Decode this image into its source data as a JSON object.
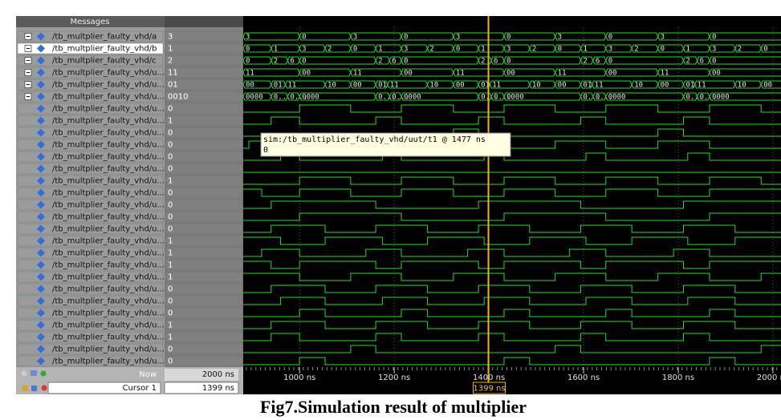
{
  "header": {
    "messages": "Messages"
  },
  "signals": [
    {
      "name": "/tb_multplier_faulty_vhd/a",
      "value": "3",
      "wave": [
        {
          "t": 881,
          "label": "3"
        },
        {
          "t": 1000,
          "label": "0"
        },
        {
          "t": 1108,
          "label": "3"
        },
        {
          "t": 1215,
          "label": "0"
        },
        {
          "t": 1325,
          "label": "3"
        },
        {
          "t": 1432,
          "label": "0"
        },
        {
          "t": 1540,
          "label": "3"
        },
        {
          "t": 1647,
          "label": "0"
        },
        {
          "t": 1757,
          "label": "3"
        },
        {
          "t": 1866,
          "label": "0"
        }
      ]
    },
    {
      "name": "/tb_multplier_faulty_vhd/b",
      "value": "1",
      "wave": [
        {
          "t": 881,
          "label": "0"
        },
        {
          "t": 940,
          "label": "1"
        },
        {
          "t": 1000,
          "label": "3"
        },
        {
          "t": 1054,
          "label": "2"
        },
        {
          "t": 1108,
          "label": "0"
        },
        {
          "t": 1161,
          "label": "1"
        },
        {
          "t": 1215,
          "label": "3"
        },
        {
          "t": 1270,
          "label": "2"
        },
        {
          "t": 1325,
          "label": "0"
        },
        {
          "t": 1378,
          "label": "1"
        },
        {
          "t": 1432,
          "label": "3"
        },
        {
          "t": 1486,
          "label": "2"
        },
        {
          "t": 1540,
          "label": "0"
        },
        {
          "t": 1594,
          "label": "1"
        },
        {
          "t": 1647,
          "label": "3"
        },
        {
          "t": 1702,
          "label": "2"
        },
        {
          "t": 1757,
          "label": "0"
        },
        {
          "t": 1811,
          "label": "1"
        },
        {
          "t": 1866,
          "label": "3"
        },
        {
          "t": 1920,
          "label": "2"
        },
        {
          "t": 1975,
          "label": "0"
        }
      ]
    },
    {
      "name": "/tb_multplier_faulty_vhd/c",
      "value": "2",
      "wave": [
        {
          "t": 881,
          "label": "0"
        },
        {
          "t": 940,
          "label": "2"
        },
        {
          "t": 975,
          "label": "6"
        },
        {
          "t": 1000,
          "label": "0"
        },
        {
          "t": 1161,
          "label": "2"
        },
        {
          "t": 1190,
          "label": "6"
        },
        {
          "t": 1215,
          "label": "0"
        },
        {
          "t": 1378,
          "label": "2"
        },
        {
          "t": 1405,
          "label": "6"
        },
        {
          "t": 1432,
          "label": "0"
        },
        {
          "t": 1594,
          "label": "2"
        },
        {
          "t": 1620,
          "label": "6"
        },
        {
          "t": 1647,
          "label": "0"
        },
        {
          "t": 1811,
          "label": "2"
        },
        {
          "t": 1840,
          "label": "6"
        },
        {
          "t": 1866,
          "label": "0"
        }
      ]
    },
    {
      "name": "/tb_multplier_faulty_vhd/u...",
      "value": "11",
      "wave": [
        {
          "t": 881,
          "label": "11"
        },
        {
          "t": 1000,
          "label": "00"
        },
        {
          "t": 1108,
          "label": "11"
        },
        {
          "t": 1215,
          "label": "00"
        },
        {
          "t": 1325,
          "label": "11"
        },
        {
          "t": 1432,
          "label": "00"
        },
        {
          "t": 1540,
          "label": "11"
        },
        {
          "t": 1647,
          "label": "00"
        },
        {
          "t": 1757,
          "label": "11"
        },
        {
          "t": 1866,
          "label": "00"
        }
      ]
    },
    {
      "name": "/tb_multplier_faulty_vhd/u...",
      "value": "01",
      "wave": [
        {
          "t": 881,
          "label": "00"
        },
        {
          "t": 940,
          "label": "01"
        },
        {
          "t": 970,
          "label": "11"
        },
        {
          "t": 1054,
          "label": "10"
        },
        {
          "t": 1108,
          "label": "00"
        },
        {
          "t": 1161,
          "label": "01"
        },
        {
          "t": 1186,
          "label": "11"
        },
        {
          "t": 1270,
          "label": "10"
        },
        {
          "t": 1325,
          "label": "00"
        },
        {
          "t": 1378,
          "label": "01"
        },
        {
          "t": 1402,
          "label": "11"
        },
        {
          "t": 1486,
          "label": "10"
        },
        {
          "t": 1540,
          "label": "00"
        },
        {
          "t": 1594,
          "label": "01"
        },
        {
          "t": 1618,
          "label": "11"
        },
        {
          "t": 1702,
          "label": "10"
        },
        {
          "t": 1757,
          "label": "00"
        },
        {
          "t": 1811,
          "label": "01"
        },
        {
          "t": 1835,
          "label": "11"
        },
        {
          "t": 1920,
          "label": "10"
        },
        {
          "t": 1975,
          "label": "00"
        }
      ]
    },
    {
      "name": "/tb_multplier_faulty_vhd/u...",
      "value": "0010",
      "wave": [
        {
          "t": 881,
          "label": "0000"
        },
        {
          "t": 940,
          "label": "0..."
        },
        {
          "t": 975,
          "label": "0..."
        },
        {
          "t": 1000,
          "label": "0000"
        },
        {
          "t": 1161,
          "label": "0..."
        },
        {
          "t": 1190,
          "label": "0..."
        },
        {
          "t": 1215,
          "label": "0000"
        },
        {
          "t": 1378,
          "label": "0..."
        },
        {
          "t": 1405,
          "label": "0..."
        },
        {
          "t": 1432,
          "label": "0000"
        },
        {
          "t": 1594,
          "label": "0..."
        },
        {
          "t": 1620,
          "label": "0..."
        },
        {
          "t": 1647,
          "label": "0000"
        },
        {
          "t": 1811,
          "label": "0..."
        },
        {
          "t": 1840,
          "label": "0..."
        },
        {
          "t": 1866,
          "label": "0000"
        }
      ]
    },
    {
      "name": "/tb_multplier_faulty_vhd/u...",
      "value": "0",
      "init": 0,
      "toggles": [
        1000,
        1108,
        1215,
        1325,
        1432,
        1540,
        1647,
        1757,
        1866,
        1975
      ]
    },
    {
      "name": "/tb_multplier_faulty_vhd/u...",
      "value": "1",
      "init": 0,
      "toggles": [
        940,
        1000,
        1161,
        1215,
        1378,
        1432,
        1594,
        1647,
        1811,
        1866
      ]
    },
    {
      "name": "/tb_multplier_faulty_vhd/u...",
      "value": "0",
      "init": 0,
      "toggles": [
        1325,
        1378,
        1757,
        1811
      ]
    },
    {
      "name": "/tb_multplier_faulty_vhd/u...",
      "value": "0",
      "init": 0,
      "toggles": [
        893,
        1000,
        1108,
        1215,
        1325,
        1432,
        1540,
        1647,
        1757,
        1866
      ]
    },
    {
      "name": "/tb_multplier_faulty_vhd/u...",
      "value": "0",
      "init": 0,
      "toggles": [
        960,
        1000,
        1175,
        1215,
        1390,
        1432,
        1605,
        1647,
        1820,
        1866
      ]
    },
    {
      "name": "/tb_multplier_faulty_vhd/u...",
      "value": "0",
      "init": 0,
      "toggles": []
    },
    {
      "name": "/tb_multplier_faulty_vhd/u...",
      "value": "1",
      "init": 0,
      "toggles": [
        1000,
        1108,
        1215,
        1325,
        1432,
        1540,
        1647,
        1757,
        1866,
        1975
      ]
    },
    {
      "name": "/tb_multplier_faulty_vhd/u...",
      "value": "0",
      "init": 1,
      "toggles": [
        920,
        1000,
        1108,
        1215,
        1325,
        1432,
        1540,
        1647,
        1757,
        1866
      ]
    },
    {
      "name": "/tb_multplier_faulty_vhd/u...",
      "value": "0",
      "init": 0,
      "toggles": [
        940,
        1161,
        1378,
        1594,
        1811
      ]
    },
    {
      "name": "/tb_multplier_faulty_vhd/u...",
      "value": "0",
      "init": 0,
      "toggles": [
        1000,
        1215,
        1432,
        1647,
        1866
      ]
    },
    {
      "name": "/tb_multplier_faulty_vhd/u...",
      "value": "0",
      "init": 0,
      "toggles": [
        940,
        1054,
        1161,
        1270,
        1378,
        1486,
        1594,
        1702,
        1811,
        1920
      ]
    },
    {
      "name": "/tb_multplier_faulty_vhd/u...",
      "value": "1",
      "init": 1,
      "toggles": [
        960,
        1054,
        1175,
        1270,
        1390,
        1486,
        1605,
        1702,
        1820,
        1920
      ]
    },
    {
      "name": "/tb_multplier_faulty_vhd/u...",
      "value": "1",
      "init": 0,
      "toggles": [
        920,
        1000,
        1140,
        1215,
        1355,
        1432,
        1570,
        1647,
        1790,
        1866
      ]
    },
    {
      "name": "/tb_multplier_faulty_vhd/u...",
      "value": "1",
      "init": 1,
      "toggles": [
        940,
        1000,
        1161,
        1215,
        1378,
        1432,
        1594,
        1647,
        1811,
        1866
      ]
    },
    {
      "name": "/tb_multplier_faulty_vhd/u...",
      "value": "1",
      "init": 1,
      "toggles": [
        1000,
        1108,
        1215,
        1325,
        1432,
        1540,
        1647,
        1757,
        1866,
        1975
      ]
    },
    {
      "name": "/tb_multplier_faulty_vhd/u...",
      "value": "0",
      "init": 0,
      "toggles": [
        940,
        1054,
        1161,
        1270,
        1378,
        1486,
        1594,
        1702,
        1811,
        1920
      ]
    },
    {
      "name": "/tb_multplier_faulty_vhd/u...",
      "value": "0",
      "init": 0,
      "toggles": [
        960,
        1054,
        1175,
        1270,
        1390,
        1486,
        1605,
        1702,
        1820,
        1920
      ]
    },
    {
      "name": "/tb_multplier_faulty_vhd/u...",
      "value": "0",
      "init": 0,
      "toggles": [
        1000,
        1054,
        1215,
        1270,
        1432,
        1486,
        1647,
        1702,
        1866,
        1920
      ]
    },
    {
      "name": "/tb_multplier_faulty_vhd/u...",
      "value": "1",
      "init": 0,
      "toggles": [
        940,
        1054,
        1161,
        1270,
        1378,
        1486,
        1594,
        1702,
        1811,
        1920
      ]
    },
    {
      "name": "/tb_multplier_faulty_vhd/u...",
      "value": "1",
      "init": 0,
      "toggles": [
        940,
        1000,
        1161,
        1215,
        1378,
        1432,
        1594,
        1647,
        1811,
        1866
      ]
    },
    {
      "name": "/tb_multplier_faulty_vhd/u...",
      "value": "0",
      "init": 0,
      "toggles": [
        1108,
        1161,
        1540,
        1594,
        1975
      ]
    },
    {
      "name": "/tb_multplier_faulty_vhd/u...",
      "value": "0",
      "init": 0,
      "toggles": [
        1000,
        1054,
        1432,
        1486,
        1866,
        1920
      ]
    }
  ],
  "timeline": {
    "xlim": [
      881,
      2017
    ],
    "xticks": [
      {
        "value": 1000,
        "label": "1000 ns"
      },
      {
        "value": 1200,
        "label": "1200 ns"
      },
      {
        "value": 1400,
        "label": "1400 ns"
      },
      {
        "value": 1600,
        "label": "1600 ns"
      },
      {
        "value": 1800,
        "label": "1800 ns"
      },
      {
        "value": 2000,
        "label": "2000 ns"
      }
    ]
  },
  "now": {
    "label": "Now",
    "value": "2000 ns"
  },
  "cursor": {
    "label": "Cursor 1",
    "time": {
      "value": 1399,
      "label": "1399 ns"
    }
  },
  "tooltip": {
    "text": "sim:/tb_multiplier_faulty_vhd/uut/t1 @ 1477 ns",
    "value": "0"
  },
  "caption": "Fig7.Simulation result of multiplier"
}
